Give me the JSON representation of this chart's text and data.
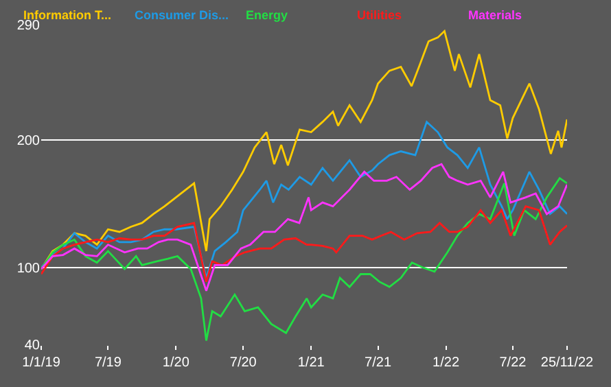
{
  "chart_data": {
    "type": "line",
    "xlim": [
      "2019-01-01",
      "2022-11-25"
    ],
    "xticks": [
      {
        "value": "2019-01-01",
        "label": "1/1/19"
      },
      {
        "value": "2019-07-01",
        "label": "7/19"
      },
      {
        "value": "2020-01-01",
        "label": "1/20"
      },
      {
        "value": "2020-07-01",
        "label": "7/20"
      },
      {
        "value": "2021-01-01",
        "label": "1/21"
      },
      {
        "value": "2021-07-01",
        "label": "7/21"
      },
      {
        "value": "2022-01-01",
        "label": "1/22"
      },
      {
        "value": "2022-07-01",
        "label": "7/22"
      },
      {
        "value": "2022-11-25",
        "label": "25/11/22"
      }
    ],
    "ylim": [
      40,
      290
    ],
    "yticks": [
      40,
      100,
      200,
      290
    ],
    "grid": "y",
    "legend": "top",
    "series": [
      {
        "name": "Information T...",
        "color": "#ffcc00",
        "x": [
          "2019-01-01",
          "2019-02-01",
          "2019-03-01",
          "2019-04-01",
          "2019-05-01",
          "2019-06-01",
          "2019-07-01",
          "2019-08-01",
          "2019-09-01",
          "2019-10-01",
          "2019-11-01",
          "2019-12-01",
          "2020-01-01",
          "2020-02-19",
          "2020-03-23",
          "2020-04-01",
          "2020-05-01",
          "2020-06-01",
          "2020-07-01",
          "2020-08-01",
          "2020-09-02",
          "2020-09-23",
          "2020-10-12",
          "2020-10-30",
          "2020-12-01",
          "2021-01-01",
          "2021-02-01",
          "2021-03-01",
          "2021-03-15",
          "2021-04-15",
          "2021-05-15",
          "2021-06-15",
          "2021-07-01",
          "2021-08-01",
          "2021-09-01",
          "2021-09-30",
          "2021-10-20",
          "2021-11-15",
          "2021-12-10",
          "2021-12-28",
          "2022-01-25",
          "2022-02-05",
          "2022-03-08",
          "2022-04-01",
          "2022-05-01",
          "2022-05-28",
          "2022-06-16",
          "2022-07-01",
          "2022-08-15",
          "2022-09-10",
          "2022-10-12",
          "2022-11-01",
          "2022-11-10",
          "2022-11-25"
        ],
        "values": [
          99,
          113,
          118,
          127,
          125,
          118,
          130,
          128,
          132,
          135,
          142,
          148,
          155,
          166,
          113,
          138,
          148,
          161,
          175,
          194,
          206,
          181,
          196,
          180,
          208,
          206,
          214,
          222,
          211,
          227,
          214,
          231,
          244,
          254,
          257,
          242,
          257,
          277,
          280,
          285,
          254,
          267,
          241,
          267,
          231,
          227,
          201,
          217,
          244,
          224,
          189,
          207,
          194,
          216
        ]
      },
      {
        "name": "Consumer Dis...",
        "color": "#1e9be6",
        "x": [
          "2019-01-01",
          "2019-02-01",
          "2019-03-01",
          "2019-04-01",
          "2019-05-01",
          "2019-06-01",
          "2019-07-01",
          "2019-08-01",
          "2019-09-01",
          "2019-10-01",
          "2019-11-01",
          "2019-12-01",
          "2020-01-01",
          "2020-02-19",
          "2020-03-23",
          "2020-04-15",
          "2020-05-15",
          "2020-06-15",
          "2020-07-01",
          "2020-08-15",
          "2020-09-02",
          "2020-09-20",
          "2020-10-12",
          "2020-11-01",
          "2020-12-01",
          "2021-01-01",
          "2021-02-01",
          "2021-03-01",
          "2021-04-15",
          "2021-05-15",
          "2021-06-15",
          "2021-07-01",
          "2021-08-01",
          "2021-09-01",
          "2021-10-10",
          "2021-11-10",
          "2021-12-10",
          "2022-01-05",
          "2022-02-01",
          "2022-03-01",
          "2022-04-01",
          "2022-05-01",
          "2022-06-01",
          "2022-06-16",
          "2022-07-01",
          "2022-08-15",
          "2022-09-10",
          "2022-10-10",
          "2022-11-05",
          "2022-11-25"
        ],
        "values": [
          100,
          110,
          115,
          127,
          120,
          115,
          125,
          120,
          120,
          122,
          128,
          130,
          130,
          132,
          92,
          113,
          120,
          128,
          145,
          161,
          168,
          151,
          165,
          161,
          171,
          165,
          178,
          168,
          184,
          171,
          176,
          181,
          188,
          191,
          188,
          214,
          206,
          194,
          188,
          178,
          194,
          165,
          148,
          138,
          145,
          175,
          161,
          142,
          148,
          142
        ]
      },
      {
        "name": "Energy",
        "color": "#22dd44",
        "x": [
          "2019-01-01",
          "2019-02-01",
          "2019-03-01",
          "2019-04-01",
          "2019-05-01",
          "2019-06-01",
          "2019-07-01",
          "2019-08-15",
          "2019-09-15",
          "2019-10-01",
          "2019-11-10",
          "2019-12-10",
          "2020-01-05",
          "2020-02-10",
          "2020-03-09",
          "2020-03-23",
          "2020-04-08",
          "2020-05-01",
          "2020-06-08",
          "2020-07-05",
          "2020-08-10",
          "2020-09-15",
          "2020-10-25",
          "2020-11-20",
          "2020-12-20",
          "2021-01-01",
          "2021-02-01",
          "2021-03-01",
          "2021-03-20",
          "2021-04-15",
          "2021-05-15",
          "2021-06-10",
          "2021-07-05",
          "2021-08-01",
          "2021-09-01",
          "2021-10-01",
          "2021-11-01",
          "2021-12-01",
          "2022-01-05",
          "2022-02-01",
          "2022-03-01",
          "2022-04-01",
          "2022-05-01",
          "2022-06-08",
          "2022-07-05",
          "2022-08-01",
          "2022-09-01",
          "2022-10-01",
          "2022-11-05",
          "2022-11-25"
        ],
        "values": [
          99,
          112,
          118,
          122,
          109,
          104,
          113,
          99,
          109,
          102,
          105,
          107,
          109,
          99,
          76,
          43,
          66,
          62,
          79,
          66,
          69,
          56,
          49,
          62,
          76,
          69,
          79,
          76,
          92,
          85,
          95,
          95,
          89,
          85,
          92,
          104,
          100,
          97,
          112,
          125,
          135,
          142,
          138,
          166,
          125,
          145,
          138,
          155,
          170,
          166
        ]
      },
      {
        "name": "Utilities",
        "color": "#ff1a1a",
        "x": [
          "2019-01-01",
          "2019-02-01",
          "2019-03-01",
          "2019-04-01",
          "2019-05-01",
          "2019-06-01",
          "2019-07-01",
          "2019-08-01",
          "2019-09-01",
          "2019-10-01",
          "2019-11-01",
          "2019-12-01",
          "2020-01-05",
          "2020-02-19",
          "2020-03-23",
          "2020-04-08",
          "2020-05-05",
          "2020-06-10",
          "2020-07-05",
          "2020-08-15",
          "2020-09-15",
          "2020-10-20",
          "2020-11-20",
          "2020-12-20",
          "2021-01-01",
          "2021-02-01",
          "2021-03-01",
          "2021-03-10",
          "2021-04-15",
          "2021-05-20",
          "2021-06-15",
          "2021-07-10",
          "2021-08-05",
          "2021-09-10",
          "2021-10-15",
          "2021-11-20",
          "2021-12-15",
          "2022-01-10",
          "2022-02-01",
          "2022-03-01",
          "2022-04-05",
          "2022-05-01",
          "2022-06-01",
          "2022-06-25",
          "2022-08-05",
          "2022-09-10",
          "2022-10-10",
          "2022-11-05",
          "2022-11-25"
        ],
        "values": [
          95,
          109,
          115,
          118,
          120,
          122,
          120,
          123,
          122,
          122,
          125,
          125,
          132,
          135,
          89,
          105,
          102,
          109,
          112,
          115,
          115,
          122,
          123,
          118,
          118,
          117,
          115,
          112,
          125,
          125,
          122,
          125,
          128,
          122,
          127,
          128,
          135,
          128,
          128,
          132,
          145,
          135,
          145,
          125,
          148,
          145,
          118,
          128,
          133
        ]
      },
      {
        "name": "Materials",
        "color": "#ff33ff",
        "x": [
          "2019-01-01",
          "2019-02-01",
          "2019-03-01",
          "2019-04-01",
          "2019-05-01",
          "2019-06-01",
          "2019-07-01",
          "2019-08-15",
          "2019-09-20",
          "2019-10-15",
          "2019-11-15",
          "2019-12-10",
          "2020-01-05",
          "2020-02-10",
          "2020-03-23",
          "2020-04-15",
          "2020-05-20",
          "2020-06-25",
          "2020-07-20",
          "2020-08-25",
          "2020-09-25",
          "2020-10-30",
          "2020-11-30",
          "2020-12-25",
          "2021-01-01",
          "2021-02-01",
          "2021-03-01",
          "2021-04-15",
          "2021-05-25",
          "2021-06-20",
          "2021-07-25",
          "2021-08-20",
          "2021-09-25",
          "2021-10-25",
          "2021-11-25",
          "2021-12-20",
          "2022-01-10",
          "2022-02-01",
          "2022-03-01",
          "2022-04-05",
          "2022-05-01",
          "2022-06-05",
          "2022-06-25",
          "2022-08-05",
          "2022-09-01",
          "2022-10-01",
          "2022-11-01",
          "2022-11-25"
        ],
        "values": [
          99,
          109,
          110,
          115,
          110,
          109,
          118,
          112,
          115,
          115,
          120,
          122,
          122,
          118,
          82,
          102,
          102,
          115,
          118,
          128,
          128,
          138,
          135,
          155,
          145,
          151,
          148,
          161,
          175,
          168,
          168,
          171,
          161,
          168,
          178,
          181,
          171,
          168,
          165,
          168,
          155,
          175,
          151,
          155,
          158,
          142,
          148,
          165
        ]
      }
    ]
  }
}
